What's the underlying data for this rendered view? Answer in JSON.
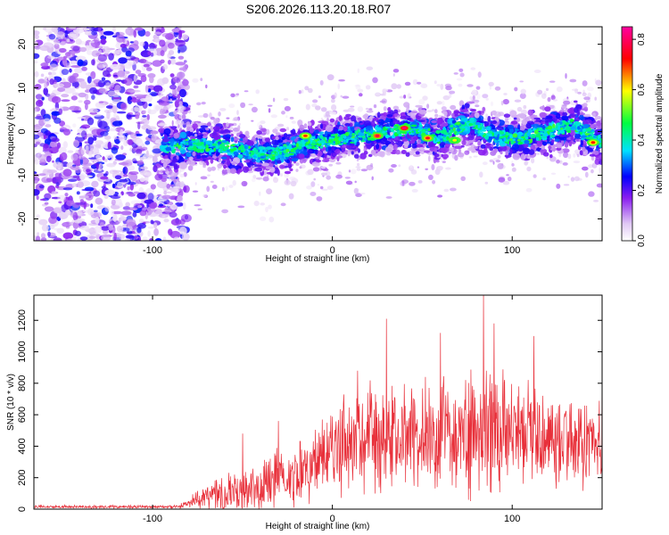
{
  "title": "S206.2026.113.20.18.R07",
  "chart_data": [
    {
      "type": "heatmap",
      "name": "spectrogram",
      "xlabel": "Height of straight line (km)",
      "ylabel": "Frequency (Hz)",
      "xlim": [
        -166,
        150
      ],
      "ylim": [
        -25,
        24
      ],
      "xticks": [
        -100,
        0,
        100
      ],
      "yticks": [
        -20,
        -10,
        0,
        10,
        20
      ],
      "colorbar": {
        "label": "Normalized spectral amplitude",
        "range": [
          0.0,
          0.85
        ],
        "ticks": [
          0.0,
          0.2,
          0.4,
          0.6,
          0.8
        ],
        "colormap": [
          "#ffffff",
          "#e0c8f4",
          "#8a1ef0",
          "#0000ff",
          "#00e0ff",
          "#00ff40",
          "#ffff00",
          "#ff0000",
          "#ff00a0"
        ]
      },
      "noise_region_x": [
        -166,
        -85
      ],
      "signal_start_x": -95,
      "ridge": {
        "x": [
          -95,
          -80,
          -60,
          -45,
          -30,
          -15,
          0,
          15,
          30,
          45,
          60,
          75,
          90,
          105,
          120,
          135,
          150
        ],
        "freq": [
          -4,
          -3,
          -3.5,
          -5,
          -5,
          -3,
          -2,
          -1,
          0,
          0.5,
          -1.5,
          2,
          -1,
          -1.5,
          0,
          1.5,
          -2.5
        ]
      },
      "hot_spots": [
        {
          "x": -15,
          "freq": -1,
          "amp": 0.7
        },
        {
          "x": 25,
          "freq": -1,
          "amp": 0.78
        },
        {
          "x": 40,
          "freq": 0.8,
          "amp": 0.82
        },
        {
          "x": 53,
          "freq": -1.5,
          "amp": 0.75
        },
        {
          "x": 68,
          "freq": -2,
          "amp": 0.6
        },
        {
          "x": 145,
          "freq": -2.5,
          "amp": 0.72
        }
      ]
    },
    {
      "type": "line",
      "name": "snr",
      "xlabel": "Height of straight line (km)",
      "ylabel": "SNR (10 * v/v)",
      "xlim": [
        -166,
        150
      ],
      "ylim": [
        0,
        1360
      ],
      "xticks": [
        -100,
        0,
        100
      ],
      "yticks": [
        0,
        200,
        400,
        600,
        800,
        1000,
        1200
      ],
      "color": "#e8303a",
      "envelope": {
        "x": [
          -166,
          -85,
          -80,
          -70,
          -50,
          -40,
          -30,
          -10,
          0,
          10,
          30,
          50,
          70,
          90,
          110,
          130,
          150
        ],
        "base": [
          15,
          15,
          40,
          70,
          110,
          150,
          200,
          280,
          380,
          430,
          460,
          470,
          480,
          490,
          480,
          430,
          400
        ],
        "amplitude": [
          12,
          12,
          50,
          110,
          190,
          230,
          230,
          260,
          330,
          380,
          400,
          420,
          450,
          470,
          420,
          380,
          300
        ]
      },
      "peaks": [
        {
          "x": -50,
          "y": 480
        },
        {
          "x": -30,
          "y": 560
        },
        {
          "x": 14,
          "y": 880
        },
        {
          "x": 30,
          "y": 1210
        },
        {
          "x": 60,
          "y": 1120
        },
        {
          "x": 84,
          "y": 1360
        },
        {
          "x": 90,
          "y": 1180
        },
        {
          "x": 112,
          "y": 1100
        },
        {
          "x": 150,
          "y": 960
        }
      ]
    }
  ]
}
